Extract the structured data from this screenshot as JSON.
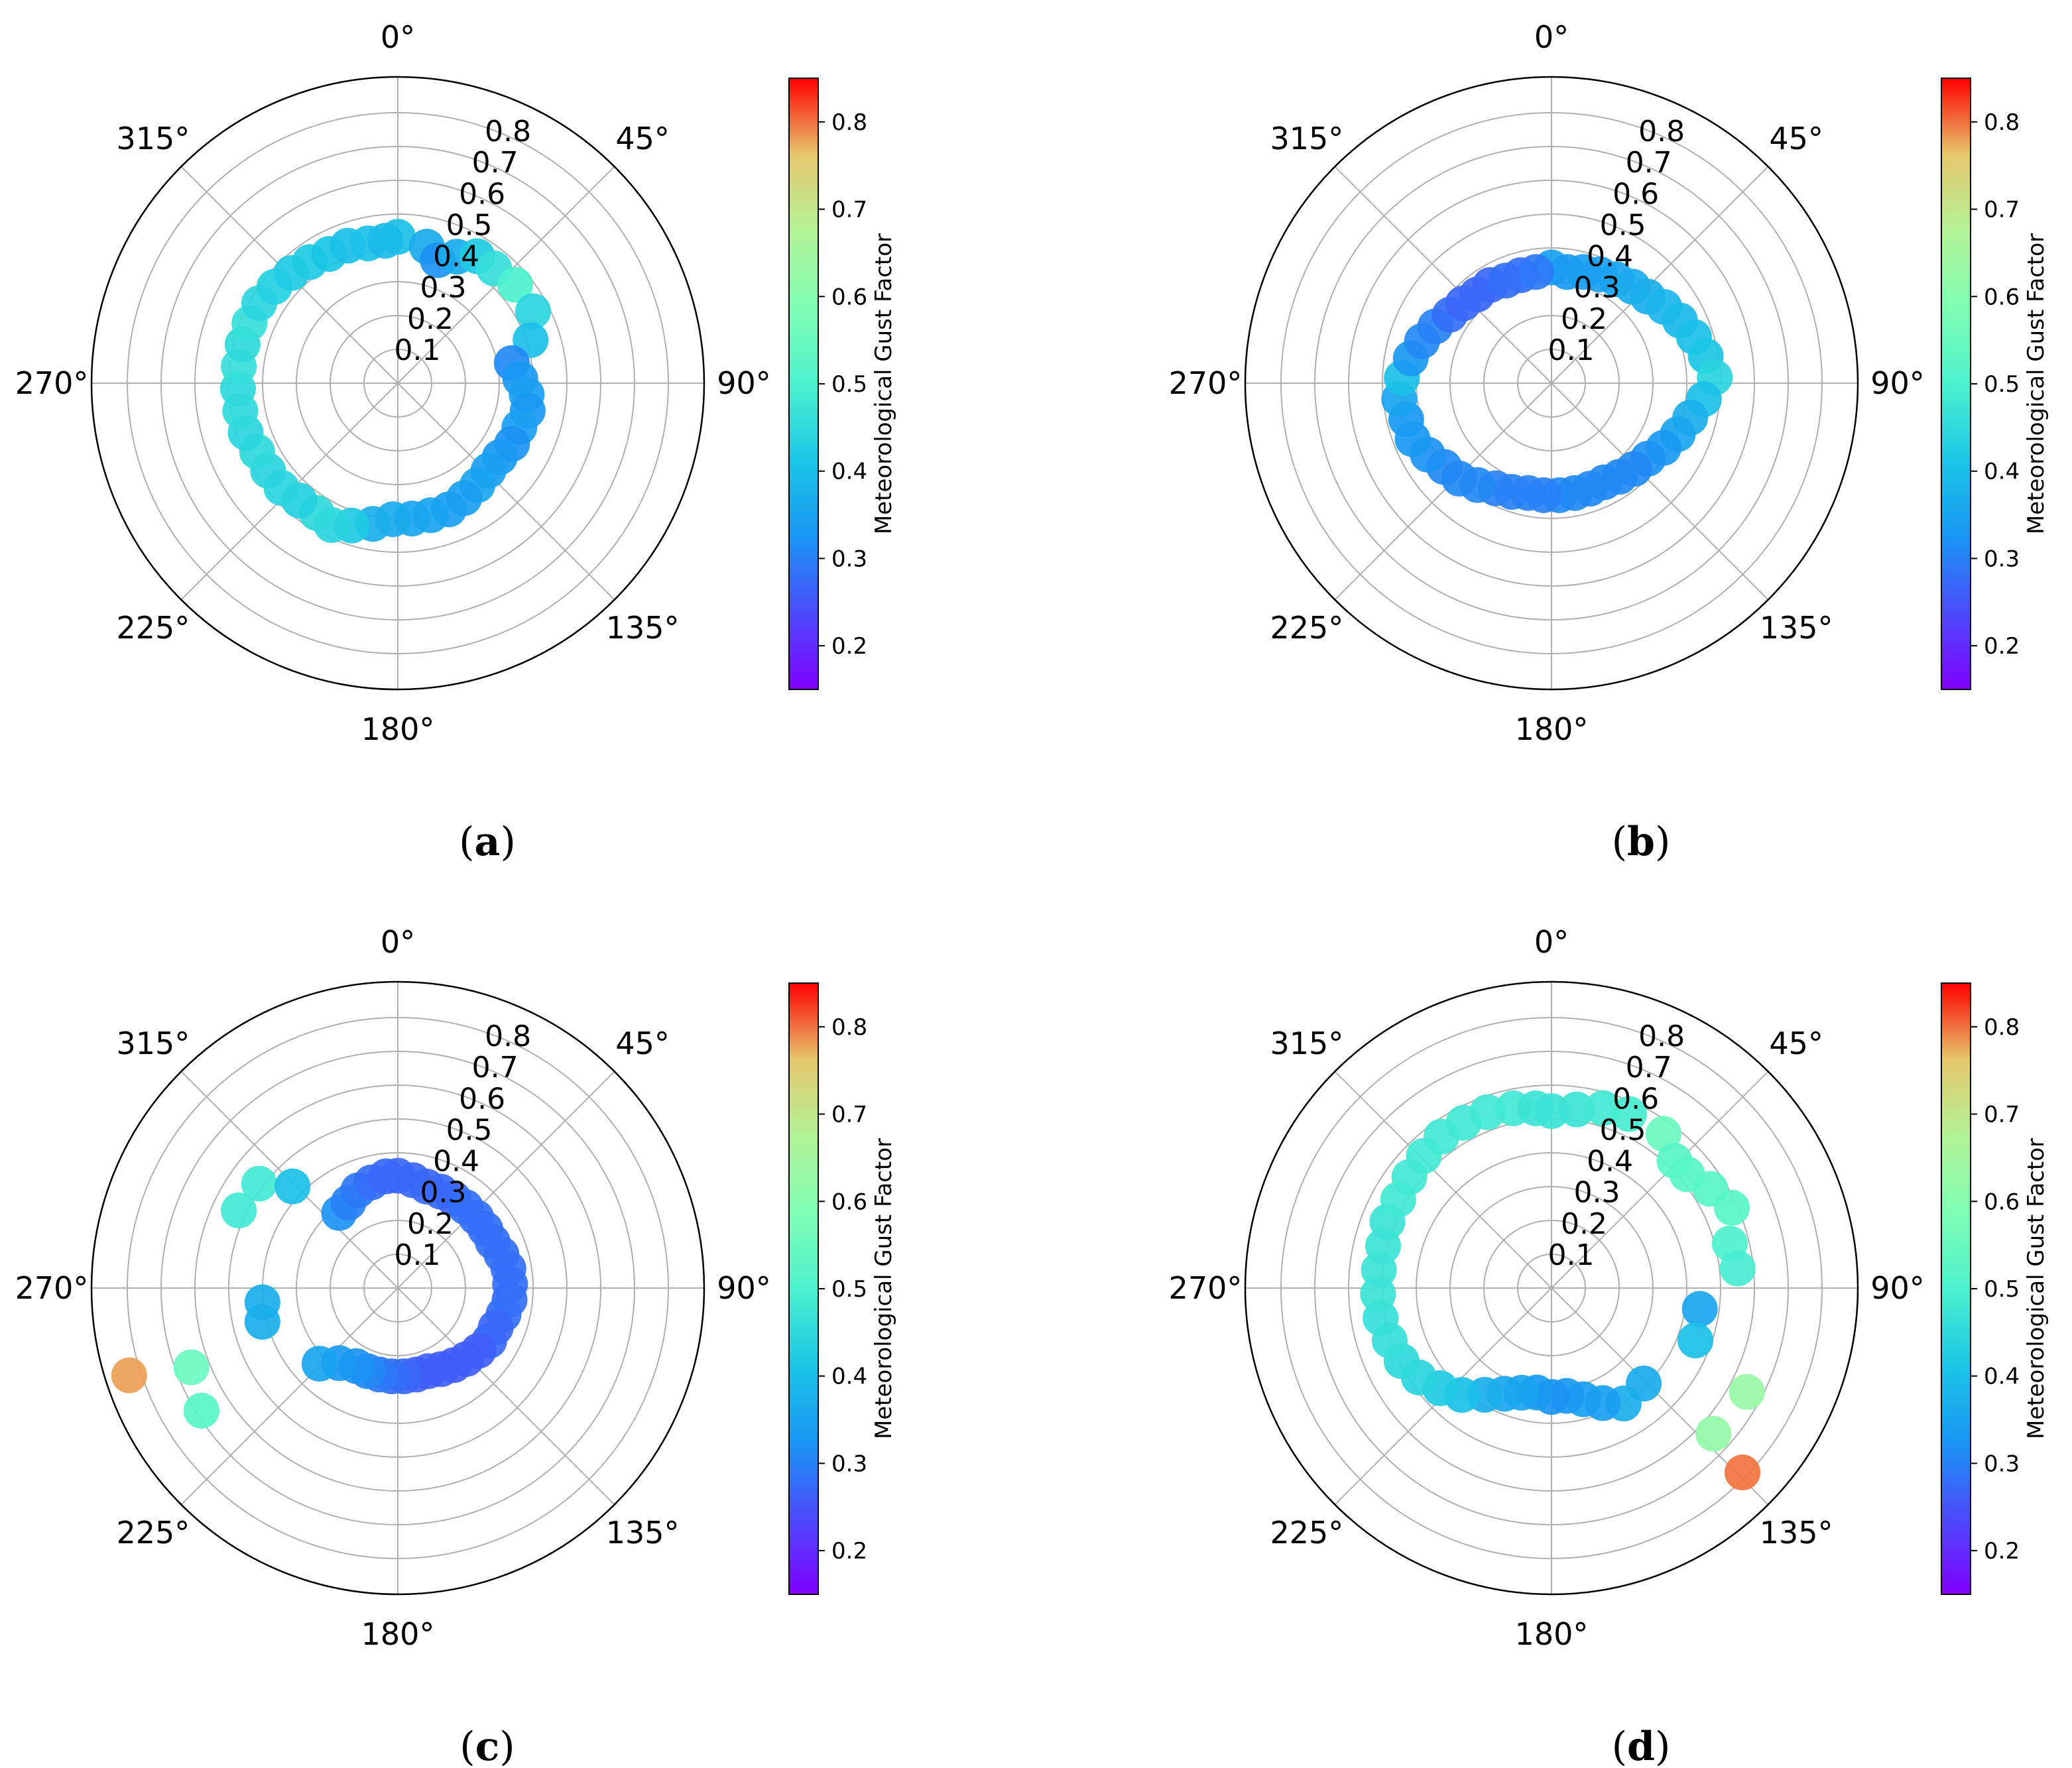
{
  "figure": {
    "colorbar_label": "Meteorological Gust Factor",
    "colorbar_ticks": [
      "0.2",
      "0.3",
      "0.4",
      "0.5",
      "0.6",
      "0.7",
      "0.8"
    ],
    "angle_labels": [
      "0°",
      "45°",
      "90°",
      "135°",
      "180°",
      "225°",
      "270°",
      "315°"
    ],
    "radial_labels": [
      "0.1",
      "0.2",
      "0.3",
      "0.4",
      "0.5",
      "0.6",
      "0.7",
      "0.8"
    ],
    "colormap": "rainbow",
    "panel_labels": [
      "(a)",
      "(b)",
      "(c)",
      "(d)"
    ]
  },
  "chart_data": [
    {
      "type": "scatter",
      "projection": "polar",
      "theta_direction": "clockwise",
      "theta_zero": "N",
      "rlim": [
        0,
        0.9
      ],
      "color_range": [
        0.15,
        0.85
      ],
      "grid": true,
      "colorbar": "right",
      "panel": "(a)",
      "points": [
        {
          "theta": 0,
          "r": 0.43,
          "c": 0.4
        },
        {
          "theta": 12,
          "r": 0.41,
          "c": 0.36
        },
        {
          "theta": 18,
          "r": 0.38,
          "c": 0.32
        },
        {
          "theta": 25,
          "r": 0.41,
          "c": 0.36
        },
        {
          "theta": 32,
          "r": 0.44,
          "c": 0.42
        },
        {
          "theta": 40,
          "r": 0.44,
          "c": 0.46
        },
        {
          "theta": 50,
          "r": 0.45,
          "c": 0.5
        },
        {
          "theta": 62,
          "r": 0.45,
          "c": 0.44
        },
        {
          "theta": 72,
          "r": 0.41,
          "c": 0.4
        },
        {
          "theta": 80,
          "r": 0.34,
          "c": 0.31
        },
        {
          "theta": 88,
          "r": 0.36,
          "c": 0.33
        },
        {
          "theta": 95,
          "r": 0.38,
          "c": 0.34
        },
        {
          "theta": 102,
          "r": 0.39,
          "c": 0.33
        },
        {
          "theta": 110,
          "r": 0.38,
          "c": 0.34
        },
        {
          "theta": 118,
          "r": 0.38,
          "c": 0.32
        },
        {
          "theta": 126,
          "r": 0.37,
          "c": 0.33
        },
        {
          "theta": 134,
          "r": 0.37,
          "c": 0.34
        },
        {
          "theta": 142,
          "r": 0.38,
          "c": 0.35
        },
        {
          "theta": 150,
          "r": 0.39,
          "c": 0.34
        },
        {
          "theta": 158,
          "r": 0.4,
          "c": 0.34
        },
        {
          "theta": 166,
          "r": 0.4,
          "c": 0.35
        },
        {
          "theta": 174,
          "r": 0.4,
          "c": 0.35
        },
        {
          "theta": 182,
          "r": 0.4,
          "c": 0.36
        },
        {
          "theta": 190,
          "r": 0.42,
          "c": 0.37
        },
        {
          "theta": 198,
          "r": 0.44,
          "c": 0.42
        },
        {
          "theta": 205,
          "r": 0.46,
          "c": 0.44
        },
        {
          "theta": 212,
          "r": 0.45,
          "c": 0.45
        },
        {
          "theta": 220,
          "r": 0.45,
          "c": 0.43
        },
        {
          "theta": 228,
          "r": 0.46,
          "c": 0.44
        },
        {
          "theta": 236,
          "r": 0.46,
          "c": 0.44
        },
        {
          "theta": 244,
          "r": 0.46,
          "c": 0.45
        },
        {
          "theta": 252,
          "r": 0.47,
          "c": 0.44
        },
        {
          "theta": 260,
          "r": 0.47,
          "c": 0.45
        },
        {
          "theta": 268,
          "r": 0.47,
          "c": 0.45
        },
        {
          "theta": 276,
          "r": 0.47,
          "c": 0.46
        },
        {
          "theta": 284,
          "r": 0.47,
          "c": 0.45
        },
        {
          "theta": 292,
          "r": 0.47,
          "c": 0.46
        },
        {
          "theta": 300,
          "r": 0.47,
          "c": 0.44
        },
        {
          "theta": 308,
          "r": 0.46,
          "c": 0.43
        },
        {
          "theta": 316,
          "r": 0.45,
          "c": 0.42
        },
        {
          "theta": 324,
          "r": 0.44,
          "c": 0.42
        },
        {
          "theta": 332,
          "r": 0.43,
          "c": 0.41
        },
        {
          "theta": 340,
          "r": 0.43,
          "c": 0.4
        },
        {
          "theta": 348,
          "r": 0.42,
          "c": 0.4
        },
        {
          "theta": 355,
          "r": 0.42,
          "c": 0.39
        }
      ]
    },
    {
      "type": "scatter",
      "projection": "polar",
      "theta_direction": "clockwise",
      "theta_zero": "N",
      "rlim": [
        0,
        0.9
      ],
      "color_range": [
        0.15,
        0.85
      ],
      "grid": true,
      "colorbar": "right",
      "panel": "(b)",
      "points": [
        {
          "theta": 0,
          "r": 0.34,
          "c": 0.34
        },
        {
          "theta": 8,
          "r": 0.33,
          "c": 0.33
        },
        {
          "theta": 16,
          "r": 0.34,
          "c": 0.34
        },
        {
          "theta": 24,
          "r": 0.35,
          "c": 0.34
        },
        {
          "theta": 32,
          "r": 0.36,
          "c": 0.35
        },
        {
          "theta": 40,
          "r": 0.37,
          "c": 0.36
        },
        {
          "theta": 48,
          "r": 0.38,
          "c": 0.37
        },
        {
          "theta": 56,
          "r": 0.4,
          "c": 0.38
        },
        {
          "theta": 64,
          "r": 0.42,
          "c": 0.39
        },
        {
          "theta": 72,
          "r": 0.44,
          "c": 0.4
        },
        {
          "theta": 80,
          "r": 0.46,
          "c": 0.41
        },
        {
          "theta": 88,
          "r": 0.48,
          "c": 0.44
        },
        {
          "theta": 96,
          "r": 0.45,
          "c": 0.4
        },
        {
          "theta": 104,
          "r": 0.42,
          "c": 0.37
        },
        {
          "theta": 112,
          "r": 0.4,
          "c": 0.35
        },
        {
          "theta": 120,
          "r": 0.38,
          "c": 0.33
        },
        {
          "theta": 128,
          "r": 0.36,
          "c": 0.32
        },
        {
          "theta": 136,
          "r": 0.35,
          "c": 0.31
        },
        {
          "theta": 144,
          "r": 0.34,
          "c": 0.31
        },
        {
          "theta": 152,
          "r": 0.33,
          "c": 0.31
        },
        {
          "theta": 160,
          "r": 0.33,
          "c": 0.31
        },
        {
          "theta": 168,
          "r": 0.33,
          "c": 0.31
        },
        {
          "theta": 176,
          "r": 0.33,
          "c": 0.31
        },
        {
          "theta": 184,
          "r": 0.33,
          "c": 0.3
        },
        {
          "theta": 192,
          "r": 0.33,
          "c": 0.3
        },
        {
          "theta": 200,
          "r": 0.34,
          "c": 0.3
        },
        {
          "theta": 208,
          "r": 0.35,
          "c": 0.3
        },
        {
          "theta": 216,
          "r": 0.37,
          "c": 0.31
        },
        {
          "theta": 224,
          "r": 0.39,
          "c": 0.31
        },
        {
          "theta": 232,
          "r": 0.4,
          "c": 0.31
        },
        {
          "theta": 240,
          "r": 0.42,
          "c": 0.32
        },
        {
          "theta": 248,
          "r": 0.44,
          "c": 0.33
        },
        {
          "theta": 256,
          "r": 0.44,
          "c": 0.33
        },
        {
          "theta": 264,
          "r": 0.45,
          "c": 0.35
        },
        {
          "theta": 272,
          "r": 0.44,
          "c": 0.4
        },
        {
          "theta": 280,
          "r": 0.42,
          "c": 0.33
        },
        {
          "theta": 288,
          "r": 0.4,
          "c": 0.31
        },
        {
          "theta": 296,
          "r": 0.38,
          "c": 0.3
        },
        {
          "theta": 304,
          "r": 0.36,
          "c": 0.28
        },
        {
          "theta": 312,
          "r": 0.35,
          "c": 0.27
        },
        {
          "theta": 320,
          "r": 0.34,
          "c": 0.27
        },
        {
          "theta": 328,
          "r": 0.34,
          "c": 0.27
        },
        {
          "theta": 336,
          "r": 0.33,
          "c": 0.28
        },
        {
          "theta": 344,
          "r": 0.33,
          "c": 0.28
        },
        {
          "theta": 352,
          "r": 0.33,
          "c": 0.29
        }
      ]
    },
    {
      "type": "scatter",
      "projection": "polar",
      "theta_direction": "clockwise",
      "theta_zero": "N",
      "rlim": [
        0,
        0.9
      ],
      "color_range": [
        0.15,
        0.85
      ],
      "grid": true,
      "colorbar": "right",
      "panel": "(c)",
      "points": [
        {
          "theta": 0,
          "r": 0.33,
          "c": 0.27
        },
        {
          "theta": 8,
          "r": 0.32,
          "c": 0.27
        },
        {
          "theta": 16,
          "r": 0.31,
          "c": 0.27
        },
        {
          "theta": 24,
          "r": 0.31,
          "c": 0.27
        },
        {
          "theta": 32,
          "r": 0.31,
          "c": 0.27
        },
        {
          "theta": 40,
          "r": 0.31,
          "c": 0.28
        },
        {
          "theta": 48,
          "r": 0.31,
          "c": 0.28
        },
        {
          "theta": 56,
          "r": 0.31,
          "c": 0.28
        },
        {
          "theta": 64,
          "r": 0.31,
          "c": 0.28
        },
        {
          "theta": 72,
          "r": 0.32,
          "c": 0.28
        },
        {
          "theta": 80,
          "r": 0.33,
          "c": 0.28
        },
        {
          "theta": 88,
          "r": 0.33,
          "c": 0.28
        },
        {
          "theta": 96,
          "r": 0.33,
          "c": 0.28
        },
        {
          "theta": 104,
          "r": 0.32,
          "c": 0.28
        },
        {
          "theta": 112,
          "r": 0.31,
          "c": 0.27
        },
        {
          "theta": 120,
          "r": 0.31,
          "c": 0.27
        },
        {
          "theta": 128,
          "r": 0.3,
          "c": 0.26
        },
        {
          "theta": 136,
          "r": 0.29,
          "c": 0.26
        },
        {
          "theta": 144,
          "r": 0.28,
          "c": 0.26
        },
        {
          "theta": 152,
          "r": 0.27,
          "c": 0.26
        },
        {
          "theta": 160,
          "r": 0.26,
          "c": 0.26
        },
        {
          "theta": 168,
          "r": 0.26,
          "c": 0.26
        },
        {
          "theta": 176,
          "r": 0.26,
          "c": 0.27
        },
        {
          "theta": 184,
          "r": 0.26,
          "c": 0.28
        },
        {
          "theta": 192,
          "r": 0.26,
          "c": 0.29
        },
        {
          "theta": 200,
          "r": 0.26,
          "c": 0.31
        },
        {
          "theta": 208,
          "r": 0.26,
          "c": 0.32
        },
        {
          "theta": 218,
          "r": 0.28,
          "c": 0.33
        },
        {
          "theta": 226,
          "r": 0.32,
          "c": 0.35
        },
        {
          "theta": 238,
          "r": 0.68,
          "c": 0.52
        },
        {
          "theta": 249,
          "r": 0.65,
          "c": 0.55
        },
        {
          "theta": 252,
          "r": 0.83,
          "c": 0.78
        },
        {
          "theta": 256,
          "r": 0.41,
          "c": 0.37
        },
        {
          "theta": 264,
          "r": 0.4,
          "c": 0.37
        },
        {
          "theta": 296,
          "r": 0.52,
          "c": 0.48
        },
        {
          "theta": 307,
          "r": 0.51,
          "c": 0.48
        },
        {
          "theta": 314,
          "r": 0.43,
          "c": 0.4
        },
        {
          "theta": 322,
          "r": 0.28,
          "c": 0.32
        },
        {
          "theta": 330,
          "r": 0.29,
          "c": 0.3
        },
        {
          "theta": 338,
          "r": 0.31,
          "c": 0.29
        },
        {
          "theta": 346,
          "r": 0.32,
          "c": 0.28
        },
        {
          "theta": 354,
          "r": 0.33,
          "c": 0.27
        }
      ]
    },
    {
      "type": "scatter",
      "projection": "polar",
      "theta_direction": "clockwise",
      "theta_zero": "N",
      "rlim": [
        0,
        0.9
      ],
      "color_range": [
        0.15,
        0.85
      ],
      "grid": true,
      "colorbar": "right",
      "panel": "(d)",
      "points": [
        {
          "theta": 0,
          "r": 0.52,
          "c": 0.47
        },
        {
          "theta": 8,
          "r": 0.53,
          "c": 0.47
        },
        {
          "theta": 16,
          "r": 0.55,
          "c": 0.48
        },
        {
          "theta": 24,
          "r": 0.56,
          "c": 0.49
        },
        {
          "theta": 36,
          "r": 0.56,
          "c": 0.55
        },
        {
          "theta": 44,
          "r": 0.52,
          "c": 0.52
        },
        {
          "theta": 50,
          "r": 0.52,
          "c": 0.52
        },
        {
          "theta": 58,
          "r": 0.55,
          "c": 0.52
        },
        {
          "theta": 66,
          "r": 0.58,
          "c": 0.52
        },
        {
          "theta": 76,
          "r": 0.54,
          "c": 0.5
        },
        {
          "theta": 84,
          "r": 0.55,
          "c": 0.49
        },
        {
          "theta": 98,
          "r": 0.44,
          "c": 0.35
        },
        {
          "theta": 110,
          "r": 0.45,
          "c": 0.4
        },
        {
          "theta": 118,
          "r": 0.65,
          "c": 0.63
        },
        {
          "theta": 132,
          "r": 0.64,
          "c": 0.62
        },
        {
          "theta": 134,
          "r": 0.78,
          "c": 0.8
        },
        {
          "theta": 136,
          "r": 0.39,
          "c": 0.36
        },
        {
          "theta": 148,
          "r": 0.4,
          "c": 0.37
        },
        {
          "theta": 156,
          "r": 0.37,
          "c": 0.34
        },
        {
          "theta": 164,
          "r": 0.34,
          "c": 0.34
        },
        {
          "theta": 172,
          "r": 0.32,
          "c": 0.33
        },
        {
          "theta": 180,
          "r": 0.32,
          "c": 0.32
        },
        {
          "theta": 188,
          "r": 0.31,
          "c": 0.33
        },
        {
          "theta": 196,
          "r": 0.32,
          "c": 0.35
        },
        {
          "theta": 204,
          "r": 0.34,
          "c": 0.35
        },
        {
          "theta": 212,
          "r": 0.37,
          "c": 0.37
        },
        {
          "theta": 220,
          "r": 0.41,
          "c": 0.4
        },
        {
          "theta": 228,
          "r": 0.44,
          "c": 0.42
        },
        {
          "theta": 236,
          "r": 0.47,
          "c": 0.44
        },
        {
          "theta": 244,
          "r": 0.49,
          "c": 0.45
        },
        {
          "theta": 252,
          "r": 0.5,
          "c": 0.46
        },
        {
          "theta": 260,
          "r": 0.51,
          "c": 0.46
        },
        {
          "theta": 268,
          "r": 0.51,
          "c": 0.47
        },
        {
          "theta": 276,
          "r": 0.51,
          "c": 0.47
        },
        {
          "theta": 284,
          "r": 0.51,
          "c": 0.47
        },
        {
          "theta": 292,
          "r": 0.52,
          "c": 0.47
        },
        {
          "theta": 300,
          "r": 0.52,
          "c": 0.48
        },
        {
          "theta": 308,
          "r": 0.53,
          "c": 0.48
        },
        {
          "theta": 316,
          "r": 0.54,
          "c": 0.48
        },
        {
          "theta": 324,
          "r": 0.55,
          "c": 0.48
        },
        {
          "theta": 332,
          "r": 0.55,
          "c": 0.48
        },
        {
          "theta": 340,
          "r": 0.55,
          "c": 0.48
        },
        {
          "theta": 348,
          "r": 0.54,
          "c": 0.48
        },
        {
          "theta": 355,
          "r": 0.53,
          "c": 0.47
        }
      ]
    }
  ]
}
